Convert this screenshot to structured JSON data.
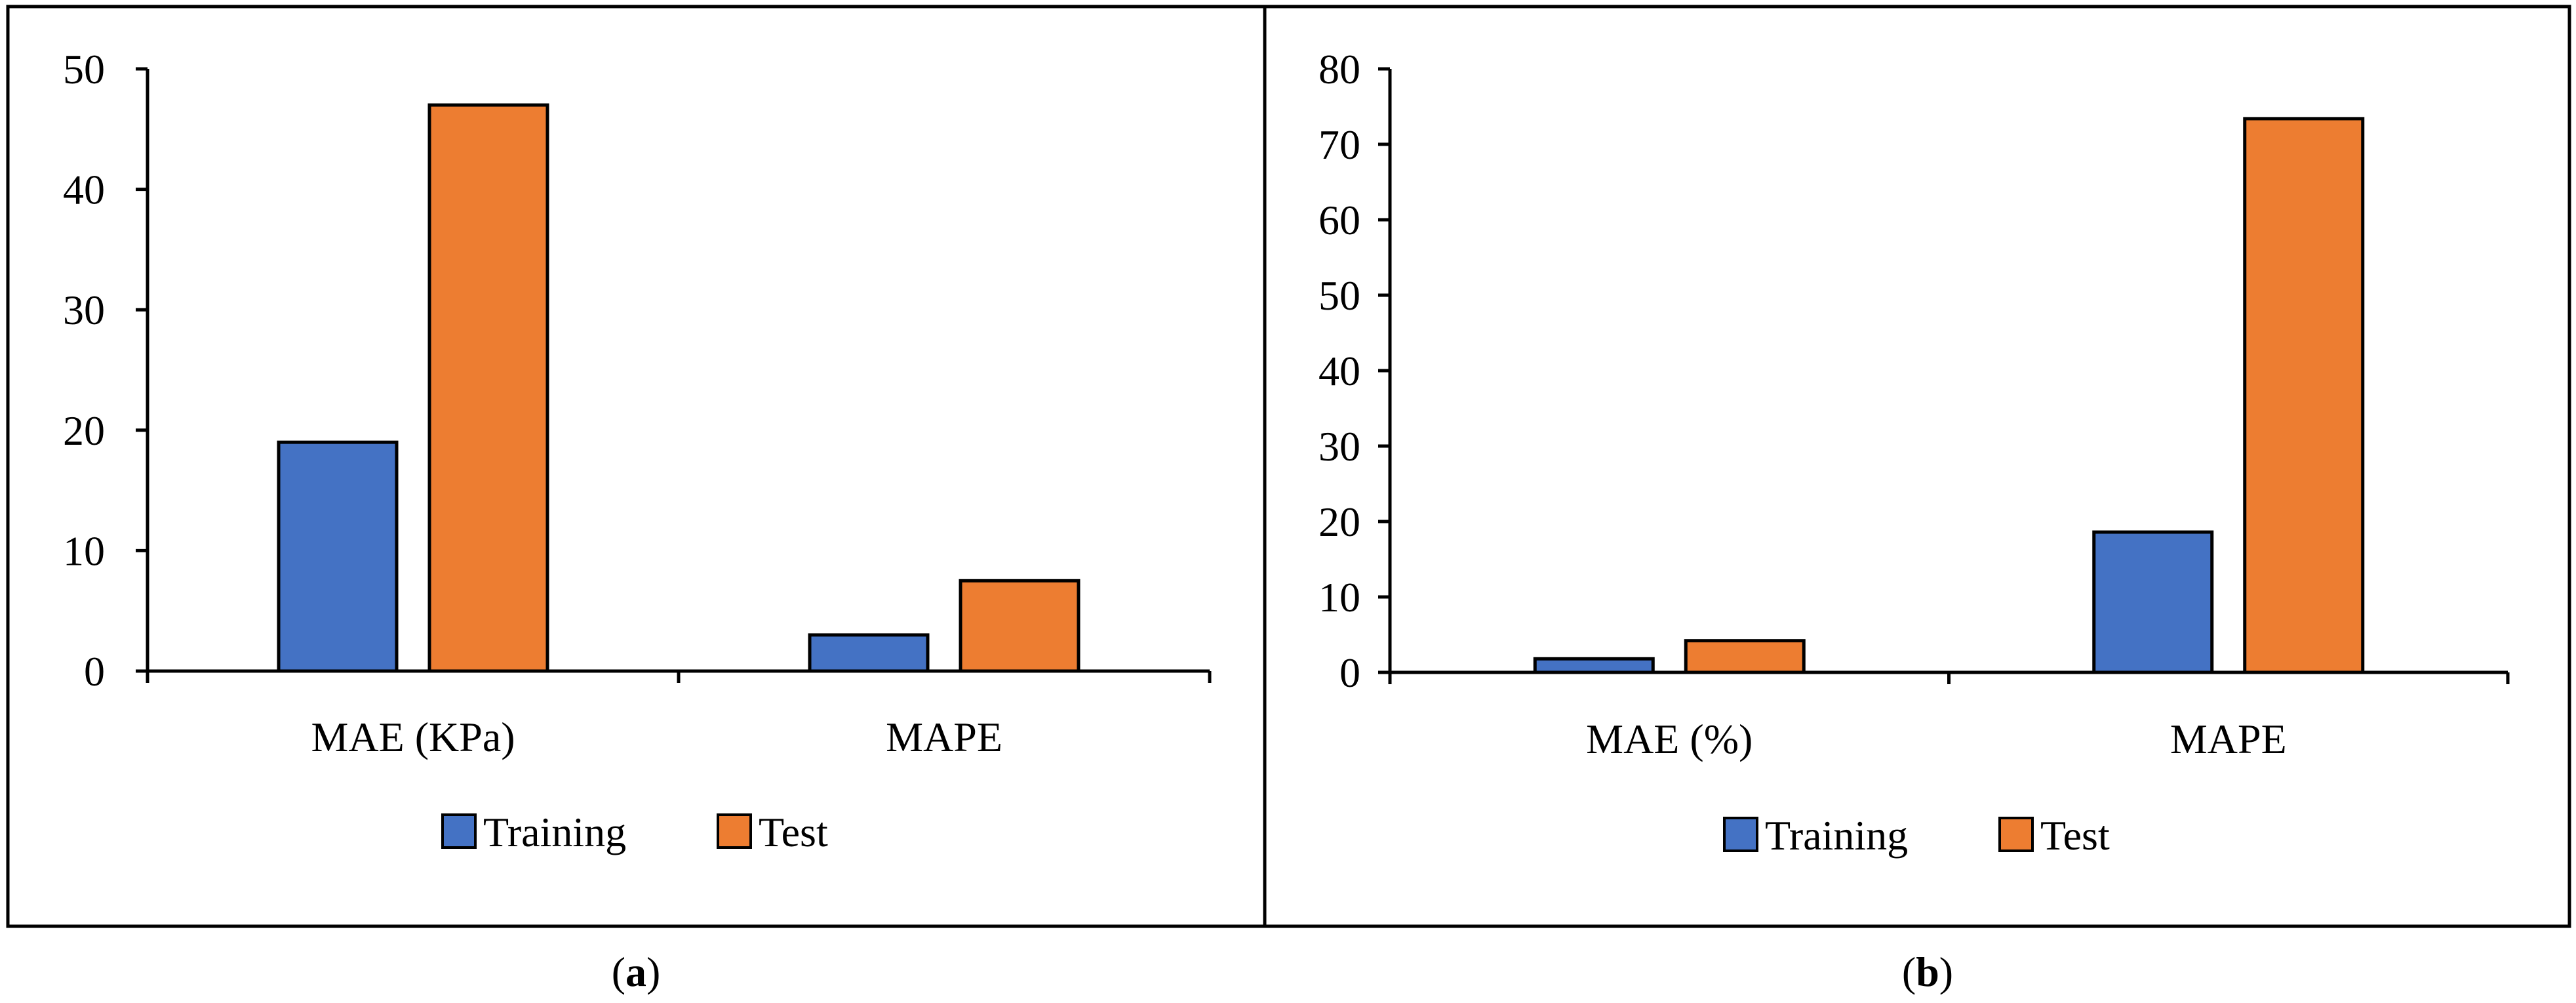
{
  "colors": {
    "training": "#4472C4",
    "test": "#ED7D31",
    "axis": "#000000"
  },
  "chart_data": [
    {
      "type": "bar",
      "categories": [
        "MAE (KPa)",
        "MAPE"
      ],
      "series": [
        {
          "name": "Training",
          "values": [
            19,
            3
          ]
        },
        {
          "name": "Test",
          "values": [
            47,
            7.5
          ]
        }
      ],
      "ylim": [
        0,
        50
      ],
      "yticks": [
        0,
        10,
        20,
        30,
        40,
        50
      ],
      "legend": "bottom",
      "grid": false,
      "caption_letter": "a"
    },
    {
      "type": "bar",
      "categories": [
        "MAE (%)",
        "MAPE"
      ],
      "series": [
        {
          "name": "Training",
          "values": [
            1.8,
            18.6
          ]
        },
        {
          "name": "Test",
          "values": [
            4.2,
            73.4
          ]
        }
      ],
      "ylim": [
        0,
        80
      ],
      "yticks": [
        0,
        10,
        20,
        30,
        40,
        50,
        60,
        70,
        80
      ],
      "legend": "bottom",
      "grid": false,
      "caption_letter": "b"
    }
  ]
}
